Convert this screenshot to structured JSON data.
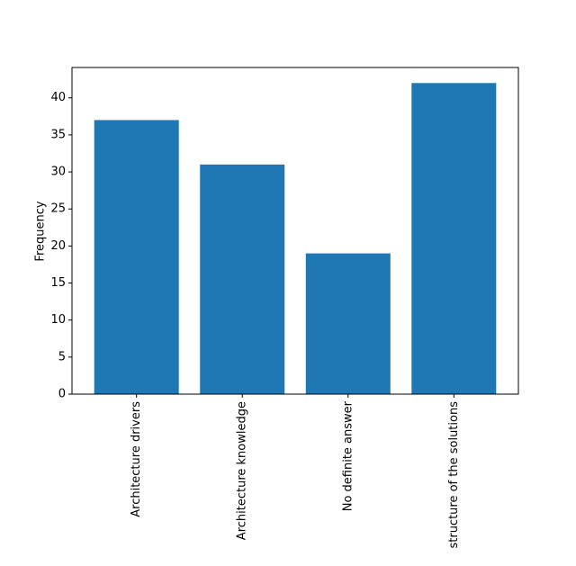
{
  "chart_data": {
    "type": "bar",
    "y_label": "Frequency",
    "categories": [
      "Architecture drivers",
      "Architecture knowledge",
      "No definite answer",
      "structure of the solutions"
    ],
    "values": [
      37,
      31,
      19,
      42
    ],
    "color": "#1f77b4",
    "ylim": [
      0,
      44.1
    ],
    "yticks": [
      0,
      5,
      10,
      15,
      20,
      25,
      30,
      35,
      40
    ],
    "grid": false
  }
}
